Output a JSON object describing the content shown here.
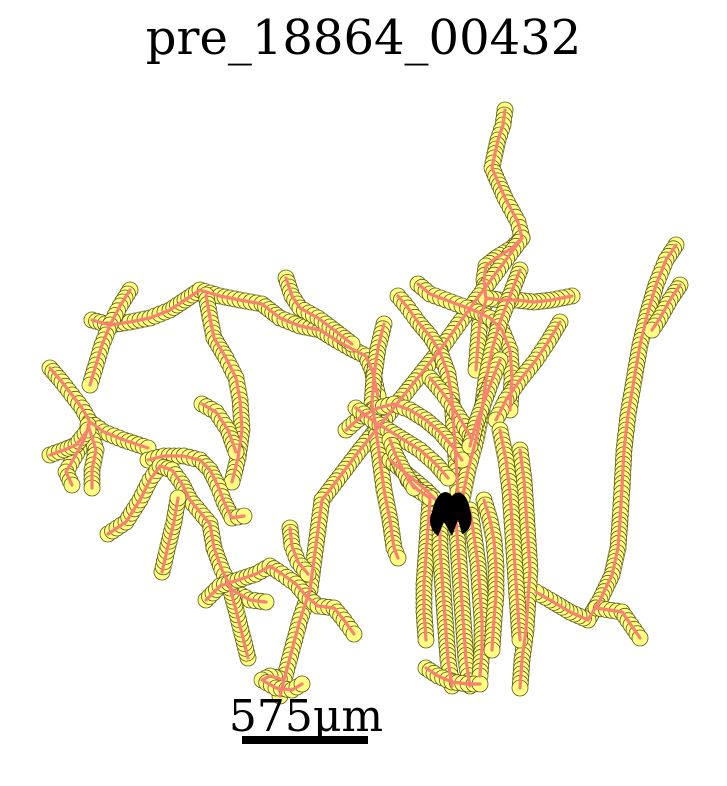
{
  "title": "pre_18864_00432",
  "scale_bar": {
    "label": "575μm"
  },
  "colors": {
    "background": "#ffffff",
    "trace_line": "#fa8072",
    "marker_fill": "#ffff80",
    "marker_edge": "#5a5a1e",
    "soma": "#000000",
    "text": "#000000"
  }
}
